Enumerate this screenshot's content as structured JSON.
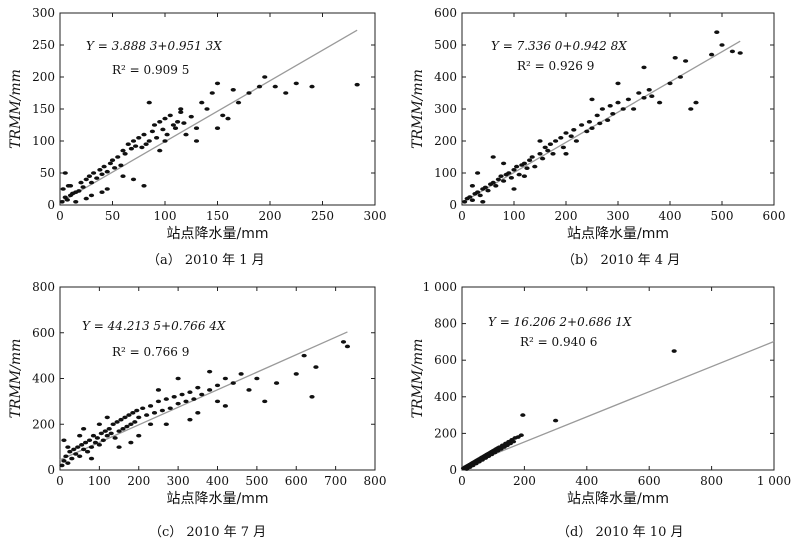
{
  "chart_data": [
    {
      "type": "scatter",
      "caption": "（a） 2010 年 1 月",
      "xlabel": "站点降水量/mm",
      "ylabel": "TRMM/mm",
      "xlim": [
        0,
        300
      ],
      "ylim": [
        0,
        300
      ],
      "xticks": [
        "0",
        "50",
        "100",
        "150",
        "200",
        "250",
        "300"
      ],
      "yticks": [
        "0",
        "50",
        "100",
        "150",
        "200",
        "250",
        "300"
      ],
      "equation": "Y = 3.888 3+0.951 3X",
      "r2": "R² = 0.909 5",
      "fit": {
        "intercept": 3.8883,
        "slope": 0.9513,
        "x_end": 283
      },
      "points": [
        [
          2,
          5
        ],
        [
          5,
          12
        ],
        [
          7,
          8
        ],
        [
          10,
          15
        ],
        [
          12,
          18
        ],
        [
          15,
          20
        ],
        [
          3,
          25
        ],
        [
          8,
          30
        ],
        [
          18,
          22
        ],
        [
          20,
          35
        ],
        [
          22,
          28
        ],
        [
          25,
          40
        ],
        [
          28,
          45
        ],
        [
          30,
          35
        ],
        [
          32,
          50
        ],
        [
          35,
          42
        ],
        [
          38,
          55
        ],
        [
          40,
          48
        ],
        [
          42,
          60
        ],
        [
          45,
          52
        ],
        [
          48,
          65
        ],
        [
          50,
          70
        ],
        [
          52,
          58
        ],
        [
          55,
          75
        ],
        [
          58,
          62
        ],
        [
          60,
          85
        ],
        [
          62,
          80
        ],
        [
          65,
          95
        ],
        [
          68,
          88
        ],
        [
          70,
          100
        ],
        [
          72,
          92
        ],
        [
          75,
          105
        ],
        [
          78,
          90
        ],
        [
          80,
          110
        ],
        [
          82,
          95
        ],
        [
          85,
          100
        ],
        [
          88,
          115
        ],
        [
          90,
          125
        ],
        [
          92,
          105
        ],
        [
          95,
          130
        ],
        [
          98,
          118
        ],
        [
          100,
          135
        ],
        [
          102,
          110
        ],
        [
          105,
          140
        ],
        [
          108,
          125
        ],
        [
          110,
          120
        ],
        [
          112,
          130
        ],
        [
          115,
          145
        ],
        [
          118,
          128
        ],
        [
          120,
          110
        ],
        [
          125,
          138
        ],
        [
          130,
          100
        ],
        [
          135,
          160
        ],
        [
          140,
          150
        ],
        [
          145,
          175
        ],
        [
          150,
          190
        ],
        [
          155,
          140
        ],
        [
          160,
          135
        ],
        [
          165,
          180
        ],
        [
          170,
          160
        ],
        [
          180,
          175
        ],
        [
          190,
          185
        ],
        [
          195,
          200
        ],
        [
          205,
          185
        ],
        [
          215,
          175
        ],
        [
          225,
          190
        ],
        [
          240,
          185
        ],
        [
          283,
          188
        ],
        [
          80,
          30
        ],
        [
          115,
          150
        ],
        [
          95,
          85
        ],
        [
          60,
          45
        ],
        [
          40,
          20
        ],
        [
          25,
          10
        ],
        [
          10,
          30
        ],
        [
          5,
          50
        ],
        [
          15,
          5
        ],
        [
          30,
          15
        ],
        [
          45,
          25
        ],
        [
          70,
          40
        ],
        [
          85,
          160
        ],
        [
          100,
          100
        ],
        [
          130,
          120
        ],
        [
          150,
          120
        ]
      ]
    },
    {
      "type": "scatter",
      "caption": "（b） 2010 年 4 月",
      "xlabel": "站点降水量/mm",
      "ylabel": "TRMM/mm",
      "xlim": [
        0,
        600
      ],
      "ylim": [
        0,
        600
      ],
      "xticks": [
        "0",
        "100",
        "200",
        "300",
        "400",
        "500",
        "600"
      ],
      "yticks": [
        "0",
        "100",
        "200",
        "300",
        "400",
        "500",
        "600"
      ],
      "equation": "Y = 7.336 0+0.942 8X",
      "r2": "R² = 0.926 9",
      "fit": {
        "intercept": 7.336,
        "slope": 0.9428,
        "x_end": 535
      },
      "points": [
        [
          5,
          10
        ],
        [
          10,
          20
        ],
        [
          15,
          25
        ],
        [
          20,
          15
        ],
        [
          25,
          35
        ],
        [
          30,
          40
        ],
        [
          35,
          30
        ],
        [
          40,
          50
        ],
        [
          45,
          55
        ],
        [
          50,
          45
        ],
        [
          55,
          65
        ],
        [
          60,
          70
        ],
        [
          65,
          60
        ],
        [
          70,
          80
        ],
        [
          75,
          90
        ],
        [
          80,
          75
        ],
        [
          85,
          95
        ],
        [
          90,
          100
        ],
        [
          95,
          85
        ],
        [
          100,
          110
        ],
        [
          105,
          120
        ],
        [
          110,
          95
        ],
        [
          115,
          125
        ],
        [
          120,
          130
        ],
        [
          125,
          115
        ],
        [
          130,
          140
        ],
        [
          135,
          150
        ],
        [
          140,
          120
        ],
        [
          150,
          160
        ],
        [
          155,
          145
        ],
        [
          160,
          180
        ],
        [
          165,
          170
        ],
        [
          170,
          190
        ],
        [
          175,
          160
        ],
        [
          180,
          200
        ],
        [
          190,
          210
        ],
        [
          195,
          180
        ],
        [
          200,
          225
        ],
        [
          210,
          215
        ],
        [
          215,
          235
        ],
        [
          220,
          200
        ],
        [
          230,
          250
        ],
        [
          240,
          230
        ],
        [
          245,
          260
        ],
        [
          250,
          240
        ],
        [
          260,
          280
        ],
        [
          265,
          255
        ],
        [
          270,
          300
        ],
        [
          280,
          265
        ],
        [
          285,
          310
        ],
        [
          290,
          285
        ],
        [
          300,
          320
        ],
        [
          310,
          300
        ],
        [
          320,
          330
        ],
        [
          330,
          300
        ],
        [
          340,
          350
        ],
        [
          350,
          335
        ],
        [
          360,
          360
        ],
        [
          365,
          340
        ],
        [
          380,
          320
        ],
        [
          400,
          380
        ],
        [
          410,
          460
        ],
        [
          420,
          400
        ],
        [
          430,
          450
        ],
        [
          440,
          300
        ],
        [
          450,
          320
        ],
        [
          480,
          470
        ],
        [
          490,
          540
        ],
        [
          500,
          500
        ],
        [
          520,
          480
        ],
        [
          535,
          475
        ],
        [
          60,
          150
        ],
        [
          80,
          130
        ],
        [
          120,
          90
        ],
        [
          150,
          200
        ],
        [
          200,
          160
        ],
        [
          250,
          330
        ],
        [
          300,
          380
        ],
        [
          350,
          430
        ],
        [
          100,
          50
        ],
        [
          40,
          10
        ],
        [
          20,
          60
        ],
        [
          30,
          100
        ]
      ]
    },
    {
      "type": "scatter",
      "caption": "（c） 2010 年 7 月",
      "xlabel": "站点降水量/mm",
      "ylabel": "TRMM/mm",
      "xlim": [
        0,
        800
      ],
      "ylim": [
        0,
        800
      ],
      "xticks": [
        "0",
        "100",
        "200",
        "300",
        "400",
        "500",
        "600",
        "700",
        "800"
      ],
      "yticks": [
        "0",
        "200",
        "400",
        "600",
        "800"
      ],
      "equation": "Y = 44.213 5+0.766 4X",
      "r2": "R² = 0.766 9",
      "fit": {
        "intercept": 44.2135,
        "slope": 0.7664,
        "x_end": 730
      },
      "points": [
        [
          5,
          20
        ],
        [
          10,
          40
        ],
        [
          15,
          60
        ],
        [
          20,
          30
        ],
        [
          25,
          80
        ],
        [
          30,
          50
        ],
        [
          35,
          90
        ],
        [
          40,
          70
        ],
        [
          45,
          100
        ],
        [
          50,
          60
        ],
        [
          55,
          110
        ],
        [
          60,
          90
        ],
        [
          65,
          120
        ],
        [
          70,
          80
        ],
        [
          75,
          130
        ],
        [
          80,
          100
        ],
        [
          85,
          150
        ],
        [
          90,
          120
        ],
        [
          95,
          140
        ],
        [
          100,
          110
        ],
        [
          105,
          160
        ],
        [
          110,
          130
        ],
        [
          115,
          170
        ],
        [
          120,
          150
        ],
        [
          125,
          180
        ],
        [
          130,
          160
        ],
        [
          135,
          200
        ],
        [
          140,
          140
        ],
        [
          145,
          210
        ],
        [
          150,
          170
        ],
        [
          155,
          220
        ],
        [
          160,
          180
        ],
        [
          165,
          230
        ],
        [
          170,
          190
        ],
        [
          175,
          240
        ],
        [
          180,
          200
        ],
        [
          185,
          250
        ],
        [
          190,
          210
        ],
        [
          195,
          260
        ],
        [
          200,
          230
        ],
        [
          210,
          270
        ],
        [
          220,
          240
        ],
        [
          230,
          280
        ],
        [
          240,
          250
        ],
        [
          250,
          300
        ],
        [
          260,
          260
        ],
        [
          270,
          310
        ],
        [
          280,
          270
        ],
        [
          290,
          320
        ],
        [
          300,
          290
        ],
        [
          310,
          330
        ],
        [
          320,
          300
        ],
        [
          330,
          340
        ],
        [
          340,
          310
        ],
        [
          350,
          360
        ],
        [
          360,
          330
        ],
        [
          380,
          350
        ],
        [
          400,
          370
        ],
        [
          420,
          400
        ],
        [
          440,
          380
        ],
        [
          460,
          420
        ],
        [
          480,
          350
        ],
        [
          500,
          400
        ],
        [
          520,
          300
        ],
        [
          550,
          380
        ],
        [
          600,
          420
        ],
        [
          620,
          500
        ],
        [
          640,
          320
        ],
        [
          650,
          450
        ],
        [
          720,
          560
        ],
        [
          730,
          540
        ],
        [
          50,
          150
        ],
        [
          100,
          200
        ],
        [
          150,
          100
        ],
        [
          200,
          150
        ],
        [
          250,
          350
        ],
        [
          300,
          400
        ],
        [
          350,
          250
        ],
        [
          400,
          300
        ],
        [
          80,
          50
        ],
        [
          120,
          230
        ],
        [
          180,
          120
        ],
        [
          230,
          200
        ],
        [
          20,
          100
        ],
        [
          60,
          180
        ],
        [
          10,
          130
        ],
        [
          270,
          200
        ],
        [
          330,
          220
        ],
        [
          380,
          430
        ],
        [
          420,
          280
        ]
      ]
    },
    {
      "type": "scatter",
      "caption": "（d） 2010 年 10 月",
      "xlabel": "站点降水量/mm",
      "ylabel": "TRMM/mm",
      "xlim": [
        0,
        1000
      ],
      "ylim": [
        0,
        1000
      ],
      "xticks": [
        "0",
        "200",
        "400",
        "600",
        "800",
        "1 000"
      ],
      "yticks": [
        "0",
        "200",
        "400",
        "600",
        "800",
        "1 000"
      ],
      "equation": "Y = 16.206 2+0.686 1X",
      "r2": "R² = 0.940 6",
      "fit": {
        "intercept": 16.2062,
        "slope": 0.6861,
        "x_end": 1000
      },
      "points": [
        [
          5,
          10
        ],
        [
          10,
          15
        ],
        [
          15,
          20
        ],
        [
          20,
          25
        ],
        [
          25,
          30
        ],
        [
          30,
          35
        ],
        [
          35,
          40
        ],
        [
          40,
          45
        ],
        [
          45,
          50
        ],
        [
          50,
          55
        ],
        [
          55,
          60
        ],
        [
          60,
          65
        ],
        [
          65,
          70
        ],
        [
          70,
          75
        ],
        [
          75,
          80
        ],
        [
          80,
          85
        ],
        [
          85,
          90
        ],
        [
          90,
          95
        ],
        [
          95,
          100
        ],
        [
          100,
          105
        ],
        [
          105,
          110
        ],
        [
          110,
          115
        ],
        [
          115,
          120
        ],
        [
          120,
          125
        ],
        [
          130,
          135
        ],
        [
          140,
          145
        ],
        [
          150,
          155
        ],
        [
          160,
          165
        ],
        [
          170,
          175
        ],
        [
          180,
          180
        ],
        [
          190,
          190
        ],
        [
          195,
          300
        ],
        [
          300,
          270
        ],
        [
          680,
          650
        ],
        [
          15,
          5
        ],
        [
          25,
          15
        ],
        [
          35,
          25
        ],
        [
          45,
          35
        ],
        [
          55,
          45
        ],
        [
          65,
          55
        ],
        [
          75,
          65
        ],
        [
          85,
          75
        ],
        [
          95,
          85
        ],
        [
          105,
          95
        ],
        [
          115,
          105
        ],
        [
          125,
          115
        ],
        [
          135,
          125
        ],
        [
          145,
          135
        ],
        [
          155,
          145
        ],
        [
          165,
          155
        ]
      ]
    }
  ]
}
